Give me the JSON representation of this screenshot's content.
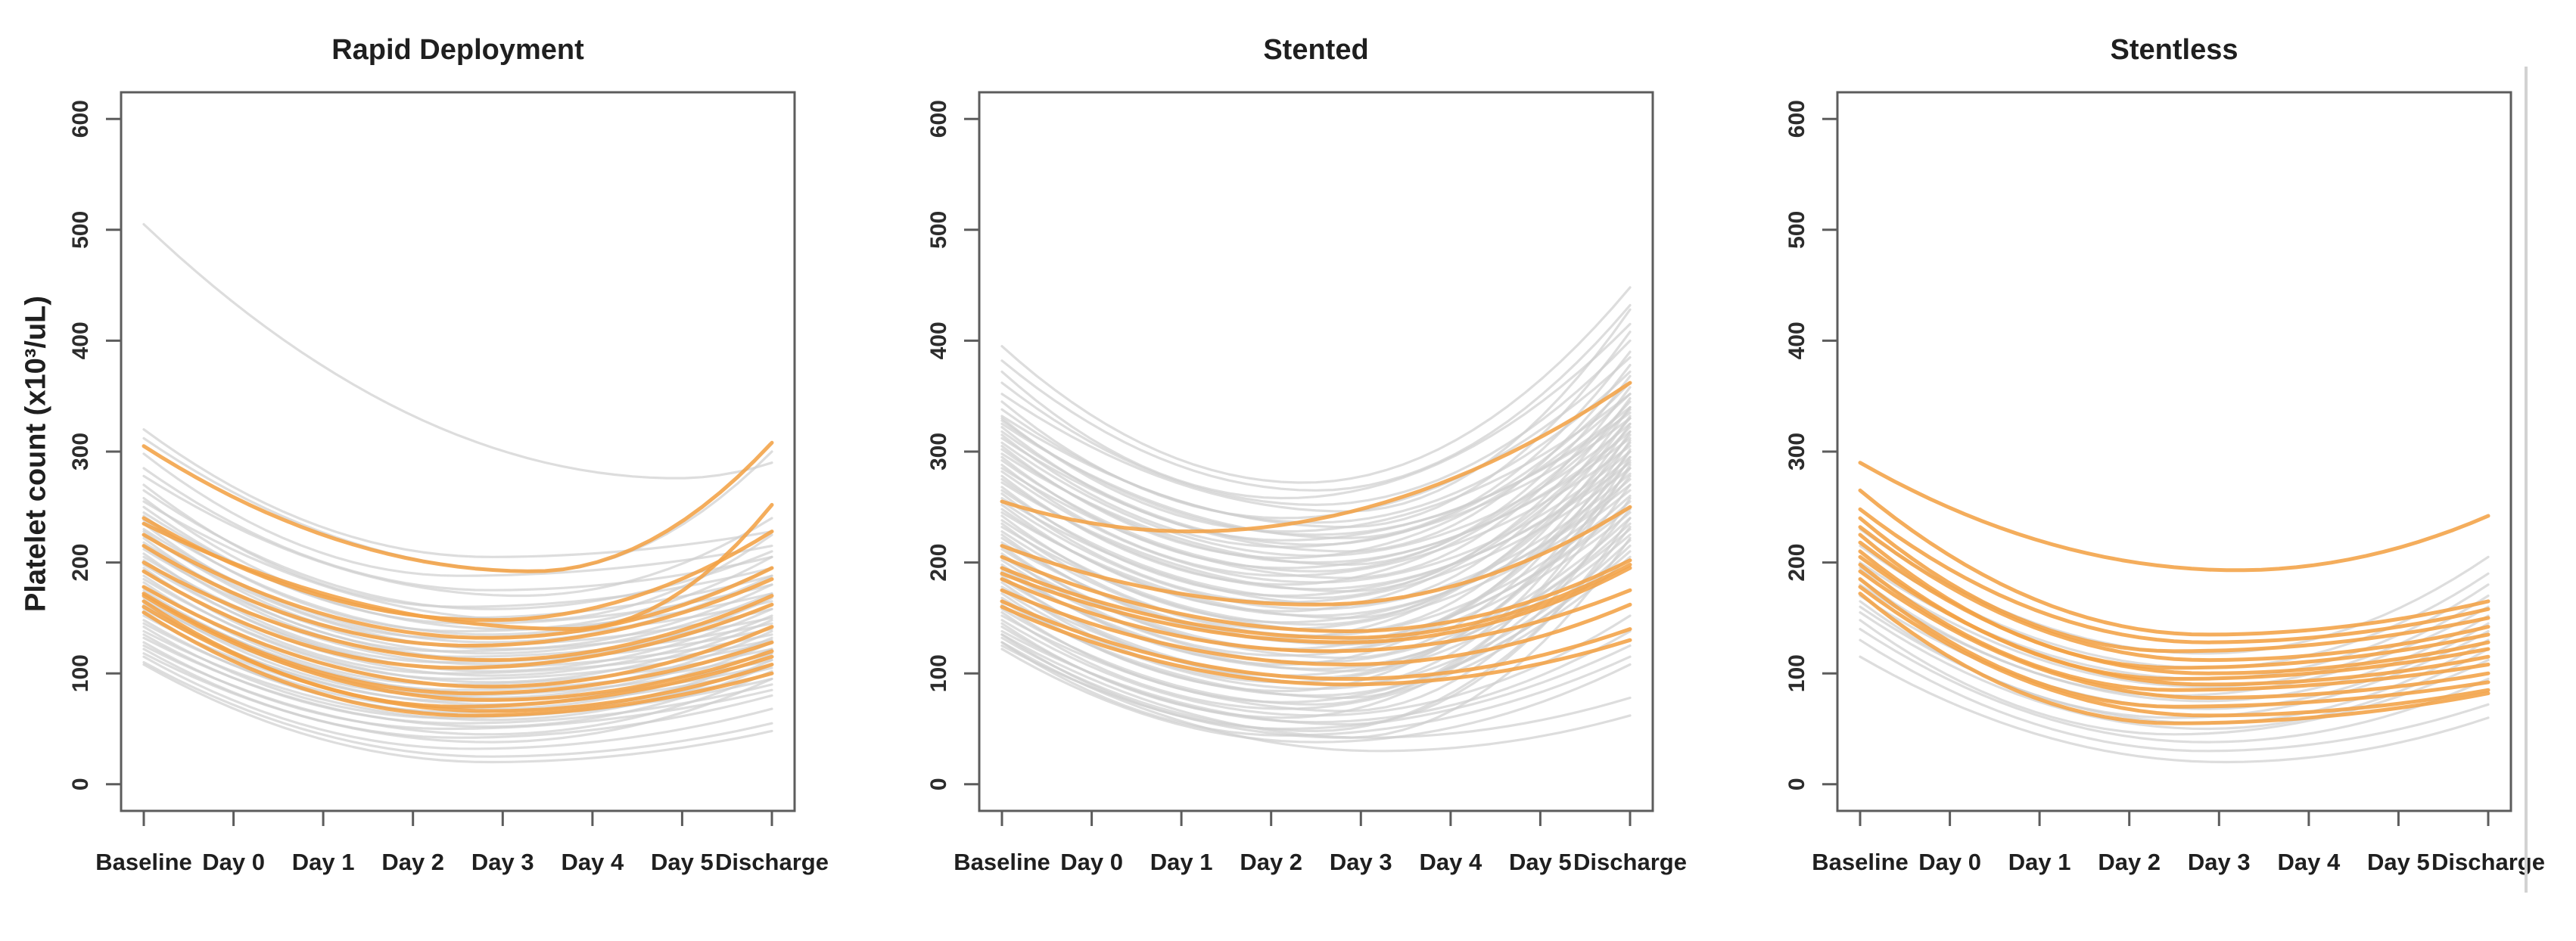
{
  "figure": {
    "y_axis_title": "Platelet count (x10³/uL)",
    "background": "#ffffff",
    "axis_color": "#5c5c5c",
    "text_color": "#1f1f1f",
    "line_color_gray": "#cfcfcf",
    "line_color_highlight": "#f2a245"
  },
  "chart_data": [
    {
      "type": "line",
      "title": "Rapid Deployment",
      "x_categories": [
        "Baseline",
        "Day 0",
        "Day 1",
        "Day 2",
        "Day 3",
        "Day 4",
        "Day 5",
        "Discharge"
      ],
      "ylabel": "Platelet count (x10³/uL)",
      "ylim": [
        0,
        600
      ],
      "y_ticks": [
        0,
        100,
        200,
        300,
        400,
        500,
        600
      ],
      "grid": false,
      "legend": false,
      "curve_format": "[baseline_value, minimum_value, discharge_value, minimum_position_0to1] — smoothed per-patient platelet trajectories, values in x10³/uL estimated from plot",
      "gray_curves": [
        [
          505,
          276,
          290,
          0.85
        ],
        [
          320,
          205,
          228,
          0.55
        ],
        [
          312,
          192,
          300,
          0.62
        ],
        [
          298,
          188,
          215,
          0.5
        ],
        [
          285,
          175,
          205,
          0.55
        ],
        [
          278,
          170,
          240,
          0.6
        ],
        [
          270,
          160,
          195,
          0.5
        ],
        [
          265,
          158,
          210,
          0.55
        ],
        [
          258,
          150,
          188,
          0.5
        ],
        [
          255,
          148,
          225,
          0.62
        ],
        [
          250,
          145,
          180,
          0.52
        ],
        [
          245,
          140,
          205,
          0.58
        ],
        [
          242,
          138,
          172,
          0.5
        ],
        [
          238,
          135,
          195,
          0.55
        ],
        [
          235,
          132,
          165,
          0.48
        ],
        [
          230,
          128,
          188,
          0.55
        ],
        [
          228,
          125,
          158,
          0.5
        ],
        [
          225,
          122,
          180,
          0.57
        ],
        [
          222,
          120,
          150,
          0.48
        ],
        [
          218,
          118,
          172,
          0.55
        ],
        [
          215,
          115,
          145,
          0.5
        ],
        [
          212,
          112,
          168,
          0.57
        ],
        [
          208,
          110,
          140,
          0.48
        ],
        [
          205,
          108,
          162,
          0.55
        ],
        [
          202,
          105,
          135,
          0.5
        ],
        [
          198,
          102,
          158,
          0.55
        ],
        [
          195,
          100,
          130,
          0.48
        ],
        [
          192,
          98,
          152,
          0.55
        ],
        [
          188,
          95,
          128,
          0.5
        ],
        [
          185,
          92,
          148,
          0.55
        ],
        [
          182,
          90,
          122,
          0.48
        ],
        [
          178,
          88,
          142,
          0.55
        ],
        [
          175,
          85,
          118,
          0.5
        ],
        [
          172,
          82,
          138,
          0.55
        ],
        [
          168,
          80,
          112,
          0.48
        ],
        [
          165,
          78,
          132,
          0.55
        ],
        [
          162,
          75,
          108,
          0.5
        ],
        [
          158,
          72,
          128,
          0.55
        ],
        [
          155,
          70,
          105,
          0.48
        ],
        [
          152,
          68,
          122,
          0.55
        ],
        [
          148,
          65,
          100,
          0.5
        ],
        [
          145,
          62,
          118,
          0.55
        ],
        [
          142,
          60,
          95,
          0.48
        ],
        [
          138,
          58,
          112,
          0.55
        ],
        [
          135,
          55,
          90,
          0.5
        ],
        [
          132,
          52,
          108,
          0.55
        ],
        [
          128,
          50,
          85,
          0.48
        ],
        [
          125,
          45,
          102,
          0.55
        ],
        [
          122,
          42,
          80,
          0.5
        ],
        [
          118,
          38,
          95,
          0.55
        ],
        [
          115,
          32,
          68,
          0.52
        ],
        [
          110,
          25,
          55,
          0.55
        ],
        [
          108,
          20,
          48,
          0.55
        ]
      ],
      "highlight_curves": [
        [
          305,
          192,
          308,
          0.62
        ],
        [
          240,
          148,
          228,
          0.55
        ],
        [
          235,
          140,
          252,
          0.68
        ],
        [
          225,
          132,
          195,
          0.55
        ],
        [
          215,
          125,
          185,
          0.52
        ],
        [
          200,
          112,
          170,
          0.55
        ],
        [
          192,
          105,
          162,
          0.5
        ],
        [
          178,
          88,
          142,
          0.55
        ],
        [
          172,
          82,
          128,
          0.52
        ],
        [
          170,
          76,
          120,
          0.55
        ],
        [
          165,
          70,
          115,
          0.5
        ],
        [
          160,
          66,
          108,
          0.55
        ],
        [
          155,
          62,
          100,
          0.52
        ]
      ]
    },
    {
      "type": "line",
      "title": "Stented",
      "x_categories": [
        "Baseline",
        "Day 0",
        "Day 1",
        "Day 2",
        "Day 3",
        "Day 4",
        "Day 5",
        "Discharge"
      ],
      "ylabel": "Platelet count (x10³/uL)",
      "ylim": [
        0,
        600
      ],
      "y_ticks": [
        0,
        100,
        200,
        300,
        400,
        500,
        600
      ],
      "grid": false,
      "legend": false,
      "curve_format": "[baseline_value, minimum_value, discharge_value, minimum_position_0to1] — smoothed per-patient platelet trajectories, values in x10³/uL estimated from plot",
      "gray_curves": [
        [
          395,
          272,
          448,
          0.48
        ],
        [
          382,
          265,
          432,
          0.5
        ],
        [
          372,
          258,
          415,
          0.45
        ],
        [
          362,
          252,
          400,
          0.5
        ],
        [
          352,
          246,
          428,
          0.55
        ],
        [
          345,
          240,
          385,
          0.45
        ],
        [
          338,
          236,
          372,
          0.5
        ],
        [
          332,
          232,
          408,
          0.55
        ],
        [
          330,
          228,
          352,
          0.45
        ],
        [
          328,
          225,
          340,
          0.5
        ],
        [
          325,
          222,
          390,
          0.55
        ],
        [
          322,
          220,
          335,
          0.45
        ],
        [
          318,
          216,
          362,
          0.5
        ],
        [
          315,
          214,
          330,
          0.45
        ],
        [
          312,
          210,
          378,
          0.55
        ],
        [
          308,
          206,
          325,
          0.5
        ],
        [
          305,
          204,
          352,
          0.45
        ],
        [
          302,
          200,
          318,
          0.5
        ],
        [
          298,
          198,
          368,
          0.55
        ],
        [
          295,
          195,
          312,
          0.45
        ],
        [
          292,
          192,
          345,
          0.5
        ],
        [
          288,
          188,
          305,
          0.45
        ],
        [
          285,
          186,
          358,
          0.55
        ],
        [
          282,
          182,
          300,
          0.5
        ],
        [
          278,
          180,
          338,
          0.45
        ],
        [
          275,
          176,
          295,
          0.5
        ],
        [
          272,
          174,
          348,
          0.55
        ],
        [
          268,
          170,
          290,
          0.45
        ],
        [
          265,
          168,
          330,
          0.5
        ],
        [
          262,
          164,
          285,
          0.45
        ],
        [
          258,
          162,
          340,
          0.55
        ],
        [
          255,
          158,
          280,
          0.5
        ],
        [
          252,
          156,
          322,
          0.45
        ],
        [
          248,
          152,
          275,
          0.5
        ],
        [
          245,
          150,
          332,
          0.55
        ],
        [
          242,
          146,
          270,
          0.45
        ],
        [
          238,
          144,
          315,
          0.5
        ],
        [
          235,
          140,
          265,
          0.45
        ],
        [
          232,
          138,
          325,
          0.55
        ],
        [
          228,
          134,
          260,
          0.5
        ],
        [
          225,
          132,
          308,
          0.45
        ],
        [
          222,
          128,
          255,
          0.5
        ],
        [
          218,
          126,
          318,
          0.55
        ],
        [
          215,
          122,
          250,
          0.45
        ],
        [
          212,
          120,
          300,
          0.5
        ],
        [
          208,
          116,
          245,
          0.45
        ],
        [
          205,
          114,
          310,
          0.55
        ],
        [
          202,
          110,
          240,
          0.5
        ],
        [
          198,
          108,
          292,
          0.45
        ],
        [
          195,
          104,
          235,
          0.5
        ],
        [
          192,
          102,
          302,
          0.55
        ],
        [
          188,
          98,
          230,
          0.45
        ],
        [
          185,
          96,
          285,
          0.5
        ],
        [
          182,
          92,
          225,
          0.45
        ],
        [
          178,
          90,
          295,
          0.55
        ],
        [
          175,
          86,
          220,
          0.5
        ],
        [
          172,
          84,
          278,
          0.45
        ],
        [
          168,
          80,
          215,
          0.5
        ],
        [
          165,
          78,
          288,
          0.55
        ],
        [
          162,
          74,
          210,
          0.45
        ],
        [
          158,
          72,
          270,
          0.5
        ],
        [
          155,
          68,
          205,
          0.45
        ],
        [
          152,
          66,
          258,
          0.55
        ],
        [
          148,
          62,
          152,
          0.5
        ],
        [
          145,
          60,
          248,
          0.45
        ],
        [
          142,
          56,
          138,
          0.5
        ],
        [
          138,
          54,
          240,
          0.55
        ],
        [
          135,
          50,
          125,
          0.45
        ],
        [
          132,
          48,
          232,
          0.5
        ],
        [
          128,
          44,
          115,
          0.45
        ],
        [
          125,
          42,
          222,
          0.55
        ],
        [
          122,
          38,
          108,
          0.5
        ],
        [
          135,
          42,
          78,
          0.58
        ],
        [
          128,
          30,
          62,
          0.6
        ]
      ],
      "highlight_curves": [
        [
          255,
          228,
          362,
          0.3
        ],
        [
          215,
          162,
          250,
          0.5
        ],
        [
          205,
          138,
          202,
          0.55
        ],
        [
          195,
          132,
          198,
          0.55
        ],
        [
          190,
          128,
          195,
          0.55
        ],
        [
          185,
          120,
          175,
          0.52
        ],
        [
          175,
          108,
          162,
          0.55
        ],
        [
          165,
          95,
          140,
          0.55
        ],
        [
          160,
          90,
          130,
          0.55
        ]
      ]
    },
    {
      "type": "line",
      "title": "Stentless",
      "x_categories": [
        "Baseline",
        "Day 0",
        "Day 1",
        "Day 2",
        "Day 3",
        "Day 4",
        "Day 5",
        "Discharge"
      ],
      "ylabel": "Platelet count (x10³/uL)",
      "ylim": [
        0,
        600
      ],
      "y_ticks": [
        0,
        100,
        200,
        300,
        400,
        500,
        600
      ],
      "grid": false,
      "legend": false,
      "curve_format": "[baseline_value, minimum_value, discharge_value, minimum_position_0to1] — smoothed per-patient platelet trajectories, values in x10³/uL estimated from plot",
      "gray_curves": [
        [
          230,
          118,
          205,
          0.55
        ],
        [
          215,
          105,
          190,
          0.55
        ],
        [
          200,
          95,
          180,
          0.55
        ],
        [
          195,
          88,
          170,
          0.55
        ],
        [
          185,
          80,
          160,
          0.5
        ],
        [
          180,
          75,
          152,
          0.55
        ],
        [
          170,
          68,
          145,
          0.55
        ],
        [
          165,
          60,
          138,
          0.5
        ],
        [
          160,
          55,
          130,
          0.55
        ],
        [
          155,
          50,
          122,
          0.55
        ],
        [
          148,
          45,
          112,
          0.5
        ],
        [
          140,
          38,
          95,
          0.55
        ],
        [
          130,
          30,
          72,
          0.55
        ],
        [
          115,
          20,
          60,
          0.58
        ]
      ],
      "highlight_curves": [
        [
          290,
          193,
          242,
          0.6
        ],
        [
          265,
          135,
          165,
          0.55
        ],
        [
          248,
          128,
          158,
          0.55
        ],
        [
          240,
          120,
          150,
          0.5
        ],
        [
          232,
          112,
          142,
          0.55
        ],
        [
          225,
          105,
          135,
          0.5
        ],
        [
          218,
          100,
          128,
          0.55
        ],
        [
          210,
          95,
          122,
          0.5
        ],
        [
          205,
          90,
          115,
          0.55
        ],
        [
          198,
          85,
          108,
          0.5
        ],
        [
          192,
          78,
          100,
          0.55
        ],
        [
          185,
          70,
          92,
          0.5
        ],
        [
          178,
          62,
          85,
          0.55
        ],
        [
          172,
          55,
          82,
          0.5
        ]
      ]
    }
  ]
}
